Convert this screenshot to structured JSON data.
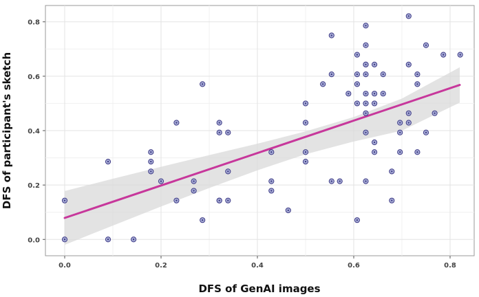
{
  "chart_data": {
    "type": "scatter",
    "title": "",
    "xlabel": "DFS of GenAI images",
    "ylabel": "DFS of participant's sketch",
    "xlim": [
      -0.04,
      0.85
    ],
    "ylim": [
      -0.06,
      0.86
    ],
    "x_ticks": [
      "0.0",
      "0.2",
      "0.4",
      "0.6",
      "0.8"
    ],
    "y_ticks": [
      "0.0",
      "0.2",
      "0.4",
      "0.6",
      "0.8"
    ],
    "grid": true,
    "legend": "none",
    "points": [
      {
        "x": 0.0,
        "y": 0.143
      },
      {
        "x": 0.0,
        "y": 0.0
      },
      {
        "x": 0.09,
        "y": 0.286
      },
      {
        "x": 0.09,
        "y": 0.0
      },
      {
        "x": 0.143,
        "y": 0.0
      },
      {
        "x": 0.179,
        "y": 0.321
      },
      {
        "x": 0.179,
        "y": 0.286
      },
      {
        "x": 0.179,
        "y": 0.25
      },
      {
        "x": 0.2,
        "y": 0.214
      },
      {
        "x": 0.232,
        "y": 0.429
      },
      {
        "x": 0.232,
        "y": 0.143
      },
      {
        "x": 0.268,
        "y": 0.214
      },
      {
        "x": 0.268,
        "y": 0.179
      },
      {
        "x": 0.286,
        "y": 0.571
      },
      {
        "x": 0.286,
        "y": 0.071
      },
      {
        "x": 0.321,
        "y": 0.429
      },
      {
        "x": 0.321,
        "y": 0.393
      },
      {
        "x": 0.321,
        "y": 0.143
      },
      {
        "x": 0.321,
        "y": 0.143
      },
      {
        "x": 0.339,
        "y": 0.393
      },
      {
        "x": 0.339,
        "y": 0.25
      },
      {
        "x": 0.339,
        "y": 0.143
      },
      {
        "x": 0.429,
        "y": 0.321
      },
      {
        "x": 0.429,
        "y": 0.214
      },
      {
        "x": 0.429,
        "y": 0.179
      },
      {
        "x": 0.464,
        "y": 0.107
      },
      {
        "x": 0.5,
        "y": 0.5
      },
      {
        "x": 0.5,
        "y": 0.429
      },
      {
        "x": 0.5,
        "y": 0.321
      },
      {
        "x": 0.5,
        "y": 0.286
      },
      {
        "x": 0.536,
        "y": 0.571
      },
      {
        "x": 0.554,
        "y": 0.75
      },
      {
        "x": 0.554,
        "y": 0.607
      },
      {
        "x": 0.554,
        "y": 0.214
      },
      {
        "x": 0.571,
        "y": 0.214
      },
      {
        "x": 0.589,
        "y": 0.536
      },
      {
        "x": 0.607,
        "y": 0.679
      },
      {
        "x": 0.607,
        "y": 0.607
      },
      {
        "x": 0.607,
        "y": 0.571
      },
      {
        "x": 0.607,
        "y": 0.5
      },
      {
        "x": 0.607,
        "y": 0.071
      },
      {
        "x": 0.625,
        "y": 0.786
      },
      {
        "x": 0.625,
        "y": 0.714
      },
      {
        "x": 0.625,
        "y": 0.643
      },
      {
        "x": 0.625,
        "y": 0.643
      },
      {
        "x": 0.625,
        "y": 0.607
      },
      {
        "x": 0.625,
        "y": 0.536
      },
      {
        "x": 0.625,
        "y": 0.5
      },
      {
        "x": 0.625,
        "y": 0.464
      },
      {
        "x": 0.625,
        "y": 0.393
      },
      {
        "x": 0.625,
        "y": 0.214
      },
      {
        "x": 0.643,
        "y": 0.643
      },
      {
        "x": 0.643,
        "y": 0.536
      },
      {
        "x": 0.643,
        "y": 0.5
      },
      {
        "x": 0.643,
        "y": 0.357
      },
      {
        "x": 0.643,
        "y": 0.321
      },
      {
        "x": 0.661,
        "y": 0.607
      },
      {
        "x": 0.661,
        "y": 0.536
      },
      {
        "x": 0.679,
        "y": 0.25
      },
      {
        "x": 0.679,
        "y": 0.143
      },
      {
        "x": 0.696,
        "y": 0.429
      },
      {
        "x": 0.696,
        "y": 0.393
      },
      {
        "x": 0.696,
        "y": 0.321
      },
      {
        "x": 0.714,
        "y": 0.821
      },
      {
        "x": 0.714,
        "y": 0.643
      },
      {
        "x": 0.714,
        "y": 0.464
      },
      {
        "x": 0.714,
        "y": 0.429
      },
      {
        "x": 0.732,
        "y": 0.607
      },
      {
        "x": 0.732,
        "y": 0.571
      },
      {
        "x": 0.732,
        "y": 0.321
      },
      {
        "x": 0.75,
        "y": 0.714
      },
      {
        "x": 0.75,
        "y": 0.393
      },
      {
        "x": 0.768,
        "y": 0.464
      },
      {
        "x": 0.786,
        "y": 0.679
      },
      {
        "x": 0.821,
        "y": 0.679
      }
    ],
    "fit_line": {
      "x": [
        0.0,
        0.82
      ],
      "y": [
        0.079,
        0.568
      ],
      "color": "#c7379b"
    },
    "confidence_band": {
      "x": [
        0.0,
        0.1,
        0.2,
        0.3,
        0.4,
        0.5,
        0.6,
        0.7,
        0.82
      ],
      "upper": [
        0.178,
        0.223,
        0.267,
        0.31,
        0.352,
        0.397,
        0.45,
        0.518,
        0.633
      ],
      "lower": [
        -0.02,
        0.051,
        0.121,
        0.189,
        0.254,
        0.313,
        0.36,
        0.4,
        0.503
      ],
      "color": "#d9d9d9"
    },
    "point_fill": "#a9aed6",
    "point_stroke": "#3d3a86"
  }
}
